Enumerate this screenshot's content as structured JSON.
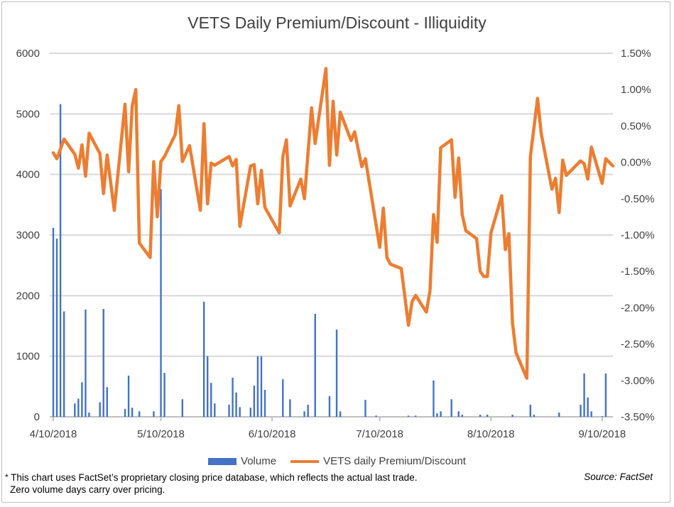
{
  "chart_data": {
    "type": "bar+line",
    "title": "VETS Daily Premium/Discount - Illiquidity",
    "x_ticks": [
      "4/10/2018",
      "5/10/2018",
      "6/10/2018",
      "7/10/2018",
      "8/10/2018",
      "9/10/2018"
    ],
    "x_range": [
      "2018-04-10",
      "2018-09-13"
    ],
    "y_left": {
      "range": [
        0,
        6000
      ],
      "ticks": [
        "0",
        "1000",
        "2000",
        "3000",
        "4000",
        "5000",
        "6000"
      ],
      "grid": true
    },
    "y_right": {
      "range": [
        -3.5,
        1.5
      ],
      "ticks": [
        "-3.50%",
        "-3.00%",
        "-2.50%",
        "-2.00%",
        "-1.50%",
        "-1.00%",
        "-0.50%",
        "0.00%",
        "0.50%",
        "1.00%",
        "1.50%"
      ]
    },
    "legend_position": "bottom",
    "colors": {
      "volume": "#4472c4",
      "premium": "#ed7d31",
      "grid": "#d9d9d9"
    },
    "series": [
      {
        "name": "Volume",
        "type": "bar",
        "axis": "left",
        "points": [
          [
            "2018-04-10",
            3120
          ],
          [
            "2018-04-11",
            2940
          ],
          [
            "2018-04-12",
            5160
          ],
          [
            "2018-04-13",
            1740
          ],
          [
            "2018-04-16",
            220
          ],
          [
            "2018-04-17",
            300
          ],
          [
            "2018-04-18",
            570
          ],
          [
            "2018-04-19",
            1770
          ],
          [
            "2018-04-20",
            70
          ],
          [
            "2018-04-23",
            240
          ],
          [
            "2018-04-24",
            1780
          ],
          [
            "2018-04-25",
            490
          ],
          [
            "2018-04-30",
            130
          ],
          [
            "2018-05-01",
            680
          ],
          [
            "2018-05-02",
            150
          ],
          [
            "2018-05-04",
            90
          ],
          [
            "2018-05-08",
            90
          ],
          [
            "2018-05-10",
            3760
          ],
          [
            "2018-05-11",
            725
          ],
          [
            "2018-05-16",
            290
          ],
          [
            "2018-05-22",
            1900
          ],
          [
            "2018-05-23",
            1000
          ],
          [
            "2018-05-24",
            560
          ],
          [
            "2018-05-25",
            220
          ],
          [
            "2018-05-29",
            200
          ],
          [
            "2018-05-30",
            645
          ],
          [
            "2018-05-31",
            400
          ],
          [
            "2018-06-01",
            160
          ],
          [
            "2018-06-04",
            150
          ],
          [
            "2018-06-05",
            515
          ],
          [
            "2018-06-06",
            1000
          ],
          [
            "2018-06-07",
            1000
          ],
          [
            "2018-06-08",
            445
          ],
          [
            "2018-06-13",
            620
          ],
          [
            "2018-06-15",
            290
          ],
          [
            "2018-06-19",
            90
          ],
          [
            "2018-06-20",
            200
          ],
          [
            "2018-06-22",
            1700
          ],
          [
            "2018-06-26",
            340
          ],
          [
            "2018-06-28",
            1440
          ],
          [
            "2018-06-29",
            90
          ],
          [
            "2018-07-06",
            280
          ],
          [
            "2018-07-09",
            20
          ],
          [
            "2018-07-18",
            20
          ],
          [
            "2018-07-20",
            20
          ],
          [
            "2018-07-25",
            600
          ],
          [
            "2018-07-26",
            60
          ],
          [
            "2018-07-27",
            90
          ],
          [
            "2018-07-30",
            290
          ],
          [
            "2018-08-01",
            90
          ],
          [
            "2018-08-02",
            35
          ],
          [
            "2018-08-07",
            35
          ],
          [
            "2018-08-09",
            35
          ],
          [
            "2018-08-16",
            35
          ],
          [
            "2018-08-21",
            200
          ],
          [
            "2018-08-22",
            35
          ],
          [
            "2018-08-29",
            70
          ],
          [
            "2018-09-04",
            200
          ],
          [
            "2018-09-05",
            715
          ],
          [
            "2018-09-06",
            320
          ],
          [
            "2018-09-07",
            90
          ],
          [
            "2018-09-10",
            10
          ],
          [
            "2018-09-11",
            715
          ]
        ]
      },
      {
        "name": "VETS daily Premium/Discount",
        "type": "line",
        "axis": "right",
        "unit": "%",
        "points": [
          [
            "2018-04-10",
            0.13
          ],
          [
            "2018-04-11",
            0.05
          ],
          [
            "2018-04-13",
            0.32
          ],
          [
            "2018-04-16",
            0.11
          ],
          [
            "2018-04-17",
            -0.08
          ],
          [
            "2018-04-18",
            0.24
          ],
          [
            "2018-04-19",
            -0.19
          ],
          [
            "2018-04-20",
            0.4
          ],
          [
            "2018-04-23",
            0.12
          ],
          [
            "2018-04-24",
            -0.43
          ],
          [
            "2018-04-25",
            0.1
          ],
          [
            "2018-04-27",
            -0.66
          ],
          [
            "2018-04-30",
            0.8
          ],
          [
            "2018-05-01",
            -0.13
          ],
          [
            "2018-05-02",
            0.77
          ],
          [
            "2018-05-03",
            1.0
          ],
          [
            "2018-05-04",
            -1.11
          ],
          [
            "2018-05-07",
            -1.31
          ],
          [
            "2018-05-08",
            0.01
          ],
          [
            "2018-05-09",
            -0.75
          ],
          [
            "2018-05-10",
            0.01
          ],
          [
            "2018-05-11",
            0.08
          ],
          [
            "2018-05-14",
            0.38
          ],
          [
            "2018-05-15",
            0.78
          ],
          [
            "2018-05-16",
            0.01
          ],
          [
            "2018-05-18",
            0.23
          ],
          [
            "2018-05-21",
            -0.66
          ],
          [
            "2018-05-22",
            0.53
          ],
          [
            "2018-05-23",
            -0.57
          ],
          [
            "2018-05-24",
            -0.01
          ],
          [
            "2018-05-25",
            -0.04
          ],
          [
            "2018-05-29",
            0.08
          ],
          [
            "2018-05-30",
            -0.05
          ],
          [
            "2018-05-31",
            0.04
          ],
          [
            "2018-06-01",
            -0.88
          ],
          [
            "2018-06-04",
            -0.05
          ],
          [
            "2018-06-05",
            -0.03
          ],
          [
            "2018-06-06",
            -0.57
          ],
          [
            "2018-06-07",
            -0.11
          ],
          [
            "2018-06-08",
            -0.62
          ],
          [
            "2018-06-12",
            -0.97
          ],
          [
            "2018-06-13",
            0.08
          ],
          [
            "2018-06-14",
            0.31
          ],
          [
            "2018-06-15",
            -0.6
          ],
          [
            "2018-06-18",
            -0.23
          ],
          [
            "2018-06-19",
            -0.5
          ],
          [
            "2018-06-21",
            0.75
          ],
          [
            "2018-06-22",
            0.26
          ],
          [
            "2018-06-25",
            1.29
          ],
          [
            "2018-06-26",
            -0.04
          ],
          [
            "2018-06-27",
            0.84
          ],
          [
            "2018-06-28",
            0.1
          ],
          [
            "2018-06-29",
            0.69
          ],
          [
            "2018-07-02",
            0.3
          ],
          [
            "2018-07-03",
            0.42
          ],
          [
            "2018-07-05",
            -0.06
          ],
          [
            "2018-07-06",
            0.05
          ],
          [
            "2018-07-10",
            -1.17
          ],
          [
            "2018-07-11",
            -0.63
          ],
          [
            "2018-07-12",
            -1.31
          ],
          [
            "2018-07-13",
            -1.4
          ],
          [
            "2018-07-16",
            -1.46
          ],
          [
            "2018-07-18",
            -2.24
          ],
          [
            "2018-07-19",
            -1.92
          ],
          [
            "2018-07-20",
            -1.83
          ],
          [
            "2018-07-23",
            -2.06
          ],
          [
            "2018-07-24",
            -1.77
          ],
          [
            "2018-07-25",
            -0.72
          ],
          [
            "2018-07-26",
            -1.1
          ],
          [
            "2018-07-27",
            0.2
          ],
          [
            "2018-07-30",
            0.31
          ],
          [
            "2018-07-31",
            -0.48
          ],
          [
            "2018-08-01",
            0.06
          ],
          [
            "2018-08-02",
            -0.72
          ],
          [
            "2018-08-03",
            -0.94
          ],
          [
            "2018-08-06",
            -1.05
          ],
          [
            "2018-08-07",
            -1.5
          ],
          [
            "2018-08-08",
            -1.57
          ],
          [
            "2018-08-09",
            -1.57
          ],
          [
            "2018-08-10",
            -0.97
          ],
          [
            "2018-08-13",
            -0.46
          ],
          [
            "2018-08-14",
            -1.2
          ],
          [
            "2018-08-15",
            -0.98
          ],
          [
            "2018-08-16",
            -2.21
          ],
          [
            "2018-08-17",
            -2.62
          ],
          [
            "2018-08-20",
            -2.97
          ],
          [
            "2018-08-21",
            0.08
          ],
          [
            "2018-08-23",
            0.88
          ],
          [
            "2018-08-24",
            0.4
          ],
          [
            "2018-08-27",
            -0.37
          ],
          [
            "2018-08-28",
            -0.22
          ],
          [
            "2018-08-29",
            -0.69
          ],
          [
            "2018-08-30",
            0.03
          ],
          [
            "2018-08-31",
            -0.18
          ],
          [
            "2018-09-04",
            0.02
          ],
          [
            "2018-09-05",
            -0.02
          ],
          [
            "2018-09-06",
            -0.23
          ],
          [
            "2018-09-07",
            0.21
          ],
          [
            "2018-09-10",
            -0.29
          ],
          [
            "2018-09-11",
            0.05
          ],
          [
            "2018-09-13",
            -0.05
          ]
        ]
      }
    ]
  },
  "legend": {
    "volume": "Volume",
    "premium": "VETS daily Premium/Discount"
  },
  "footnote": {
    "marker": "*",
    "line1": " This chart uses FactSet’s proprietary closing price database, which reflects the actual last trade.",
    "line2": "Zero volume days carry over pricing."
  },
  "source": "Source: FactSet"
}
